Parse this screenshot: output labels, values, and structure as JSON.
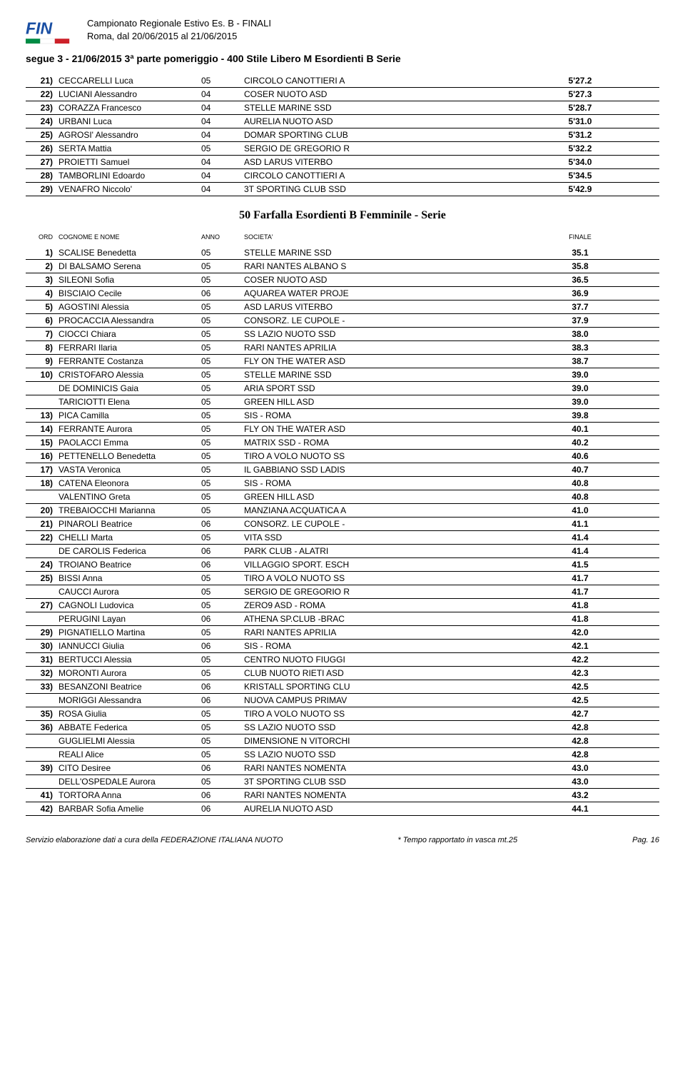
{
  "header": {
    "title_line1": "Campionato Regionale Estivo Es. B - FINALI",
    "title_line2": "Roma,  dal 20/06/2015 al 21/06/2015"
  },
  "logo": {
    "text": "FIN",
    "text_color": "#1a4fa3",
    "flag_colors": [
      "#008C45",
      "#ffffff",
      "#CD212A"
    ]
  },
  "continuation_title": "segue  3 - 21/06/2015  3ª  parte pomeriggio  -  400 Stile Libero M Esordienti B Serie",
  "continuation_rows": [
    {
      "pos": "21)",
      "name": "CECCARELLI Luca",
      "year": "05",
      "club": "CIRCOLO CANOTTIERI A",
      "time": "5'27.2"
    },
    {
      "pos": "22)",
      "name": "LUCIANI Alessandro",
      "year": "04",
      "club": "COSER NUOTO ASD",
      "time": "5'27.3"
    },
    {
      "pos": "23)",
      "name": "CORAZZA Francesco",
      "year": "04",
      "club": "STELLE MARINE SSD",
      "time": "5'28.7"
    },
    {
      "pos": "24)",
      "name": "URBANI Luca",
      "year": "04",
      "club": "AURELIA NUOTO ASD",
      "time": "5'31.0"
    },
    {
      "pos": "25)",
      "name": "AGROSI' Alessandro",
      "year": "04",
      "club": "DOMAR SPORTING CLUB",
      "time": "5'31.2"
    },
    {
      "pos": "26)",
      "name": "SERTA Mattia",
      "year": "05",
      "club": "SERGIO DE GREGORIO R",
      "time": "5'32.2"
    },
    {
      "pos": "27)",
      "name": "PROIETTI Samuel",
      "year": "04",
      "club": "ASD LARUS VITERBO",
      "time": "5'34.0"
    },
    {
      "pos": "28)",
      "name": "TAMBORLINI Edoardo",
      "year": "04",
      "club": "CIRCOLO CANOTTIERI A",
      "time": "5'34.5"
    },
    {
      "pos": "29)",
      "name": "VENAFRO Niccolo'",
      "year": "04",
      "club": "3T SPORTING CLUB SSD",
      "time": "5'42.9"
    }
  ],
  "event_title": "50 Farfalla Esordienti B Femminile  - Serie",
  "columns": {
    "ord": "ORD",
    "name": "COGNOME E NOME",
    "anno": "ANNO",
    "societa": "SOCIETA'",
    "finale": "FINALE"
  },
  "event_rows": [
    {
      "pos": "1)",
      "name": "SCALISE Benedetta",
      "year": "05",
      "club": "STELLE MARINE SSD",
      "time": "35.1"
    },
    {
      "pos": "2)",
      "name": "DI BALSAMO Serena",
      "year": "05",
      "club": "RARI NANTES ALBANO S",
      "time": "35.8"
    },
    {
      "pos": "3)",
      "name": "SILEONI Sofia",
      "year": "05",
      "club": "COSER NUOTO ASD",
      "time": "36.5"
    },
    {
      "pos": "4)",
      "name": "BISCIAIO Cecile",
      "year": "06",
      "club": "AQUAREA WATER PROJE",
      "time": "36.9"
    },
    {
      "pos": "5)",
      "name": "AGOSTINI Alessia",
      "year": "05",
      "club": "ASD LARUS VITERBO",
      "time": "37.7"
    },
    {
      "pos": "6)",
      "name": "PROCACCIA Alessandra",
      "year": "05",
      "club": "CONSORZ. LE CUPOLE -",
      "time": "37.9"
    },
    {
      "pos": "7)",
      "name": "CIOCCI Chiara",
      "year": "05",
      "club": "SS LAZIO NUOTO SSD",
      "time": "38.0"
    },
    {
      "pos": "8)",
      "name": "FERRARI Ilaria",
      "year": "05",
      "club": "RARI NANTES APRILIA",
      "time": "38.3"
    },
    {
      "pos": "9)",
      "name": "FERRANTE Costanza",
      "year": "05",
      "club": "FLY ON THE WATER ASD",
      "time": "38.7"
    },
    {
      "pos": "10)",
      "name": "CRISTOFARO Alessia",
      "year": "05",
      "club": "STELLE MARINE SSD",
      "time": "39.0"
    },
    {
      "pos": "",
      "name": "DE DOMINICIS Gaia",
      "year": "05",
      "club": "ARIA SPORT SSD",
      "time": "39.0"
    },
    {
      "pos": "",
      "name": "TARICIOTTI Elena",
      "year": "05",
      "club": "GREEN HILL ASD",
      "time": "39.0"
    },
    {
      "pos": "13)",
      "name": "PICA Camilla",
      "year": "05",
      "club": "SIS - ROMA",
      "time": "39.8"
    },
    {
      "pos": "14)",
      "name": "FERRANTE Aurora",
      "year": "05",
      "club": "FLY ON THE WATER ASD",
      "time": "40.1"
    },
    {
      "pos": "15)",
      "name": "PAOLACCI Emma",
      "year": "05",
      "club": "MATRIX SSD - ROMA",
      "time": "40.2"
    },
    {
      "pos": "16)",
      "name": "PETTENELLO Benedetta",
      "year": "05",
      "club": "TIRO A VOLO NUOTO SS",
      "time": "40.6"
    },
    {
      "pos": "17)",
      "name": "VASTA Veronica",
      "year": "05",
      "club": "IL GABBIANO SSD LADIS",
      "time": "40.7"
    },
    {
      "pos": "18)",
      "name": "CATENA Eleonora",
      "year": "05",
      "club": "SIS - ROMA",
      "time": "40.8"
    },
    {
      "pos": "",
      "name": "VALENTINO Greta",
      "year": "05",
      "club": "GREEN HILL ASD",
      "time": "40.8"
    },
    {
      "pos": "20)",
      "name": "TREBAIOCCHI Marianna",
      "year": "05",
      "club": "MANZIANA ACQUATICA A",
      "time": "41.0"
    },
    {
      "pos": "21)",
      "name": "PINAROLI Beatrice",
      "year": "06",
      "club": "CONSORZ. LE CUPOLE -",
      "time": "41.1"
    },
    {
      "pos": "22)",
      "name": "CHELLI Marta",
      "year": "05",
      "club": "VITA SSD",
      "time": "41.4"
    },
    {
      "pos": "",
      "name": "DE CAROLIS Federica",
      "year": "06",
      "club": "PARK CLUB - ALATRI",
      "time": "41.4"
    },
    {
      "pos": "24)",
      "name": "TROIANO Beatrice",
      "year": "06",
      "club": "VILLAGGIO SPORT. ESCH",
      "time": "41.5"
    },
    {
      "pos": "25)",
      "name": "BISSI Anna",
      "year": "05",
      "club": "TIRO A VOLO NUOTO SS",
      "time": "41.7"
    },
    {
      "pos": "",
      "name": "CAUCCI Aurora",
      "year": "05",
      "club": "SERGIO DE GREGORIO R",
      "time": "41.7"
    },
    {
      "pos": "27)",
      "name": "CAGNOLI Ludovica",
      "year": "05",
      "club": "ZERO9 ASD - ROMA",
      "time": "41.8"
    },
    {
      "pos": "",
      "name": "PERUGINI Layan",
      "year": "06",
      "club": "ATHENA SP.CLUB -BRAC",
      "time": "41.8"
    },
    {
      "pos": "29)",
      "name": "PIGNATIELLO Martina",
      "year": "05",
      "club": "RARI NANTES APRILIA",
      "time": "42.0"
    },
    {
      "pos": "30)",
      "name": "IANNUCCI Giulia",
      "year": "06",
      "club": "SIS - ROMA",
      "time": "42.1"
    },
    {
      "pos": "31)",
      "name": "BERTUCCI Alessia",
      "year": "05",
      "club": "CENTRO NUOTO FIUGGI",
      "time": "42.2"
    },
    {
      "pos": "32)",
      "name": "MORONTI Aurora",
      "year": "05",
      "club": "CLUB NUOTO RIETI ASD",
      "time": "42.3"
    },
    {
      "pos": "33)",
      "name": "BESANZONI Beatrice",
      "year": "06",
      "club": "KRISTALL SPORTING CLU",
      "time": "42.5"
    },
    {
      "pos": "",
      "name": "MORIGGI Alessandra",
      "year": "06",
      "club": "NUOVA CAMPUS PRIMAV",
      "time": "42.5"
    },
    {
      "pos": "35)",
      "name": "ROSA Giulia",
      "year": "05",
      "club": "TIRO A VOLO NUOTO SS",
      "time": "42.7"
    },
    {
      "pos": "36)",
      "name": "ABBATE Federica",
      "year": "05",
      "club": "SS LAZIO NUOTO SSD",
      "time": "42.8"
    },
    {
      "pos": "",
      "name": "GUGLIELMI Alessia",
      "year": "05",
      "club": "DIMENSIONE N VITORCHI",
      "time": "42.8"
    },
    {
      "pos": "",
      "name": "REALI Alice",
      "year": "05",
      "club": "SS LAZIO NUOTO SSD",
      "time": "42.8"
    },
    {
      "pos": "39)",
      "name": "CITO Desiree",
      "year": "06",
      "club": "RARI NANTES NOMENTA",
      "time": "43.0"
    },
    {
      "pos": "",
      "name": "DELL'OSPEDALE Aurora",
      "year": "05",
      "club": "3T SPORTING CLUB SSD",
      "time": "43.0"
    },
    {
      "pos": "41)",
      "name": "TORTORA Anna",
      "year": "06",
      "club": "RARI NANTES NOMENTA",
      "time": "43.2"
    },
    {
      "pos": "42)",
      "name": "BARBAR Sofia Amelie",
      "year": "06",
      "club": "AURELIA NUOTO ASD",
      "time": "44.1"
    }
  ],
  "footer": {
    "left": "Servizio elaborazione dati a cura della FEDERAZIONE ITALIANA NUOTO",
    "center": "* Tempo rapportato in vasca mt.25",
    "right": "Pag.  16"
  },
  "styling": {
    "background_color": "#ffffff",
    "text_color": "#000000",
    "row_border_color": "#000000",
    "header_fontsize": 13,
    "section_title_fontsize": 14,
    "event_title_fontsize": 16,
    "row_fontsize": 12,
    "colheader_fontsize": 9,
    "footer_fontsize": 11
  }
}
